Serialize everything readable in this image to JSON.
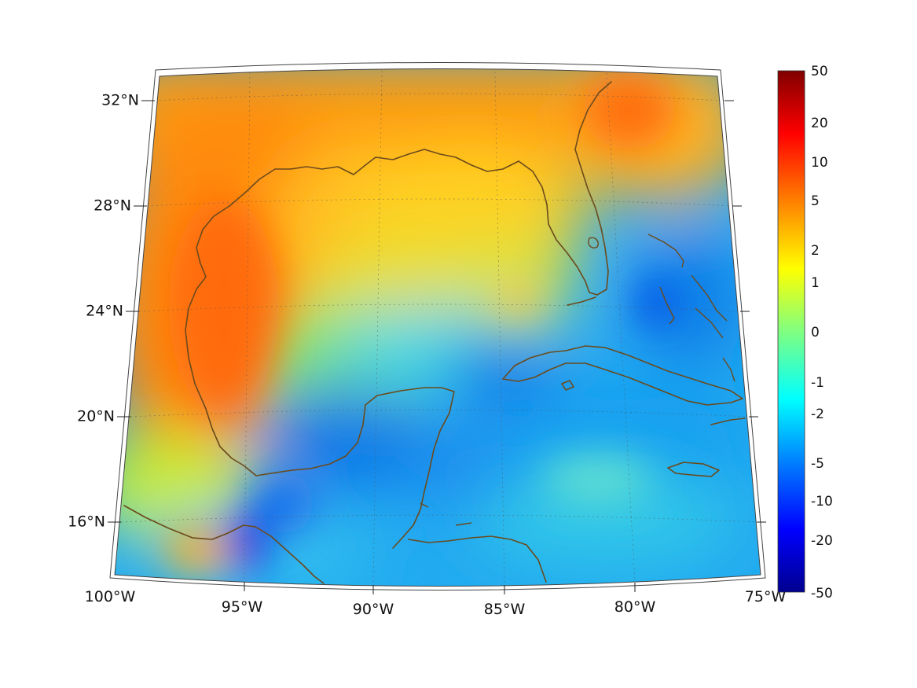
{
  "map": {
    "lon_labels": [
      "100°W",
      "95°W",
      "90°W",
      "85°W",
      "80°W",
      "75°W"
    ],
    "lat_labels": [
      "32°N",
      "28°N",
      "24°N",
      "20°N",
      "16°N"
    ],
    "extent": {
      "lon_min": -100,
      "lon_max": -75,
      "lat_min": 14,
      "lat_max": 33
    },
    "projection": "conic",
    "grid": true,
    "coastline_color": "#6b4a1c"
  },
  "colorbar": {
    "labels": [
      "50",
      "20",
      "10",
      "5",
      "2",
      "1",
      "0",
      "-1",
      "-2",
      "-5",
      "-10",
      "-20",
      "-50"
    ],
    "colormap": "jet",
    "colors": [
      "#00008f",
      "#0000ff",
      "#0080ff",
      "#00ffff",
      "#80ff80",
      "#ffff00",
      "#ff8000",
      "#ff0000",
      "#800000"
    ]
  }
}
